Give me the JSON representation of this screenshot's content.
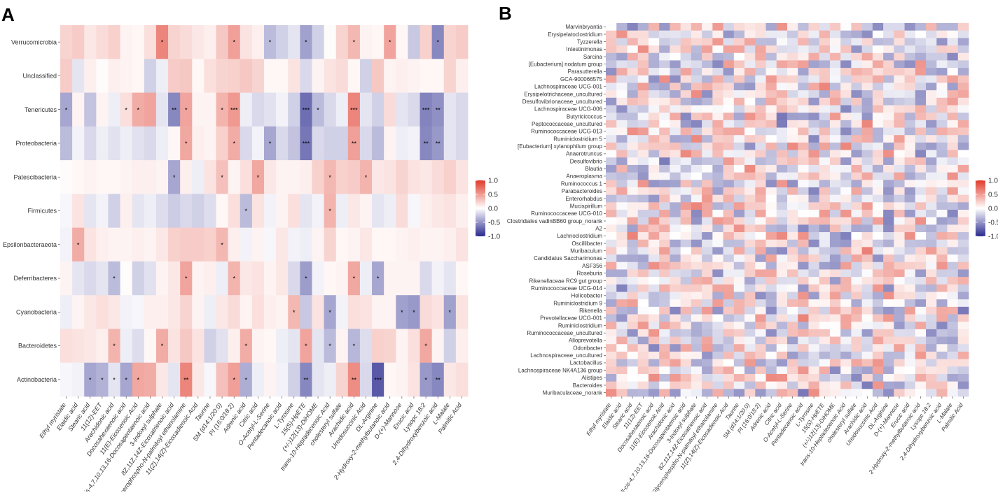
{
  "panels": [
    {
      "letter": "A"
    },
    {
      "letter": "B"
    }
  ],
  "colors": {
    "neg": "#2a2a8f",
    "mid": "#ffffff",
    "pos": "#e03a2a",
    "grid_bg": "#ebebeb",
    "tick": "#333333"
  },
  "chart_data": [
    {
      "type": "heatmap",
      "panel": "A",
      "title": "",
      "value_range": [
        -1,
        1
      ],
      "legend_ticks": [
        "1.0",
        "0.5",
        "0.0",
        "-0.5",
        "-1.0"
      ],
      "columns": [
        "Ethyl myristate",
        "Elaidic acid",
        "Stearic acid",
        "11(12)-EET",
        "Arachidonic acid",
        "Docosahexaenoic acid",
        "11(E)-Eicosenoic Acid",
        "all-cis-4,7,10,13,16-Docosapentaenoic acid",
        "3-Indoxyl sulphate",
        "8Z,11Z,14Z-Eicosatrienoic acid",
        "Glycerophospho-N-palmitoyl ethanolamine",
        "11(Z),14(Z)-Eicosadienoic Acid",
        "Taurine",
        "SM (d14:1/20:0)",
        "PI (16:0/18:2)",
        "Adrenic acid",
        "Citric acid",
        "O-Acetyl-L-Serine",
        "Pentadecanoic acid",
        "L-Tyrosine",
        "15(S)-HpETE",
        "(+/-)12(13)-DiHOME",
        "trans-10-Heptadecenoic Acid",
        "cholesteryl sulfate",
        "Arachidic acid",
        "Ureidosuccinic Acid",
        "DL-Arginine",
        "2-Hydroxy-2-methylbutanoic acid",
        "D-(+)-Mannose",
        "Erucic acid",
        "Lysopc 18:2",
        "2,4-Dihydroxybenzoic acid",
        "L-Malate",
        "Palmitic Acid"
      ],
      "rows": [
        "Verrucomicrobia",
        "Unclassified",
        "Tenericutes",
        "Proteobacteria",
        "Patescibacteria",
        "Firmicutes",
        "Epsilonbacteraeota",
        "Deferribacteres",
        "Cyanobacteria",
        "Bacteroidetes",
        "Actinobacteria"
      ],
      "values": [
        [
          0.22,
          0.26,
          0.12,
          0.18,
          0.24,
          0.06,
          0.04,
          0.16,
          0.62,
          0.22,
          0.18,
          0.12,
          0.08,
          0.28,
          0.48,
          0.14,
          0.08,
          -0.32,
          -0.22,
          -0.12,
          -0.44,
          -0.22,
          0.02,
          0.22,
          0.36,
          0.06,
          0.04,
          0.46,
          0.04,
          -0.26,
          0.24,
          -0.56,
          0.22,
          0.26
        ],
        [
          0.26,
          -0.12,
          0.08,
          0.02,
          0.08,
          0.06,
          0.04,
          -0.22,
          -0.08,
          0.26,
          0.28,
          0.04,
          0.16,
          0.22,
          0.24,
          0.28,
          0.22,
          0.04,
          0.04,
          0.14,
          -0.18,
          0.06,
          0.14,
          0.18,
          0.04,
          -0.22,
          0.28,
          0.06,
          0.08,
          0.06,
          0.04,
          0.04,
          0.22,
          0.08
        ],
        [
          -0.42,
          0.06,
          -0.28,
          0.06,
          -0.08,
          0.16,
          0.42,
          0.46,
          -0.12,
          -0.56,
          0.46,
          0.06,
          0.06,
          0.38,
          0.52,
          -0.08,
          -0.18,
          -0.14,
          -0.06,
          -0.22,
          -0.68,
          -0.32,
          -0.18,
          -0.08,
          0.62,
          -0.12,
          -0.22,
          0.18,
          -0.12,
          -0.18,
          -0.58,
          -0.52,
          -0.12,
          -0.18
        ],
        [
          -0.32,
          -0.06,
          -0.18,
          -0.08,
          -0.14,
          -0.08,
          -0.14,
          -0.18,
          -0.08,
          0.04,
          0.44,
          0.08,
          0.06,
          0.24,
          0.42,
          -0.18,
          -0.06,
          -0.42,
          -0.18,
          -0.28,
          -0.64,
          -0.18,
          -0.22,
          -0.22,
          0.48,
          -0.18,
          -0.32,
          0.06,
          -0.08,
          -0.06,
          -0.56,
          -0.48,
          -0.12,
          -0.18
        ],
        [
          0.02,
          0.04,
          0.06,
          0.04,
          0.04,
          0.06,
          0.08,
          0.08,
          0.06,
          -0.42,
          0.08,
          -0.08,
          0.14,
          0.32,
          0.06,
          0.16,
          0.44,
          0.12,
          0.06,
          0.06,
          0.08,
          0.24,
          0.36,
          0.24,
          0.26,
          0.38,
          0.12,
          0.14,
          0.22,
          0.14,
          0.12,
          0.18,
          0.24,
          0.14
        ],
        [
          -0.04,
          0.14,
          -0.12,
          -0.06,
          -0.22,
          0.08,
          -0.12,
          -0.08,
          -0.16,
          -0.24,
          -0.18,
          -0.22,
          -0.16,
          0.04,
          0.16,
          -0.32,
          0.14,
          -0.06,
          0.06,
          0.16,
          -0.12,
          -0.06,
          0.38,
          -0.08,
          0.12,
          0.06,
          -0.12,
          -0.08,
          0.18,
          -0.04,
          0.08,
          0.12,
          0.14,
          0.08
        ],
        [
          -0.06,
          0.42,
          0.14,
          0.08,
          0.06,
          0.06,
          0.08,
          0.06,
          0.12,
          0.24,
          0.26,
          0.26,
          0.24,
          0.36,
          0.08,
          -0.06,
          0.06,
          -0.04,
          0.12,
          -0.06,
          -0.08,
          0.06,
          0.22,
          0.04,
          0.06,
          0.12,
          0.04,
          0.04,
          0.06,
          0.08,
          0.06,
          0.06,
          0.08,
          0.14
        ],
        [
          0.06,
          -0.12,
          -0.18,
          -0.12,
          -0.32,
          0.02,
          -0.22,
          -0.14,
          0.06,
          0.12,
          0.46,
          0.06,
          0.08,
          -0.08,
          0.38,
          0.12,
          0.14,
          0.06,
          0.12,
          -0.18,
          -0.46,
          -0.06,
          0.04,
          0.06,
          0.44,
          -0.08,
          -0.42,
          0.06,
          0.06,
          0.06,
          -0.18,
          -0.06,
          -0.12,
          0.04
        ],
        [
          -0.08,
          0.06,
          0.12,
          0.16,
          0.12,
          -0.06,
          -0.04,
          0.08,
          0.08,
          0.12,
          0.22,
          0.06,
          -0.08,
          0.12,
          0.18,
          0.06,
          0.16,
          0.08,
          0.06,
          0.36,
          -0.26,
          0.14,
          -0.42,
          -0.06,
          0.16,
          0.14,
          0.06,
          0.06,
          -0.44,
          -0.48,
          0.18,
          0.14,
          -0.44,
          0.14
        ],
        [
          0.16,
          0.14,
          0.12,
          0.08,
          0.38,
          -0.08,
          -0.16,
          0.04,
          0.42,
          0.14,
          0.28,
          0.14,
          -0.22,
          -0.14,
          0.08,
          0.42,
          0.06,
          0.04,
          -0.08,
          -0.12,
          0.46,
          -0.12,
          -0.32,
          0.06,
          -0.34,
          -0.16,
          0.24,
          0.22,
          0.06,
          0.16,
          0.44,
          0.06,
          -0.22,
          0.08
        ],
        [
          -0.04,
          -0.06,
          -0.42,
          -0.36,
          -0.12,
          -0.42,
          0.44,
          0.42,
          0.12,
          -0.12,
          0.62,
          0.12,
          -0.04,
          0.32,
          0.48,
          -0.38,
          -0.08,
          0.06,
          -0.06,
          -0.22,
          -0.56,
          -0.12,
          -0.08,
          0.22,
          0.58,
          -0.18,
          -0.78,
          0.04,
          0.06,
          0.14,
          -0.48,
          -0.56,
          0.12,
          0.16
        ]
      ],
      "stars": [
        [
          "",
          "",
          "",
          "",
          "",
          "",
          "",
          "",
          "*",
          "",
          "",
          "",
          "",
          "",
          "*",
          "",
          "",
          "*",
          "",
          "",
          "*",
          "",
          "",
          "",
          "*",
          "",
          "",
          "*",
          "",
          "",
          "",
          "*",
          "",
          ""
        ],
        [
          "",
          "",
          "",
          "",
          "",
          "",
          "",
          "",
          "",
          "",
          "",
          "",
          "",
          "",
          "",
          "",
          "",
          "",
          "",
          "",
          "",
          "",
          "",
          "",
          "",
          "",
          "",
          "",
          "",
          "",
          "",
          "",
          "",
          ""
        ],
        [
          "*",
          "",
          "",
          "",
          "",
          "*",
          "*",
          "",
          "",
          "**",
          "*",
          "",
          "",
          "*",
          "***",
          "",
          "",
          "",
          "",
          "",
          "***",
          "*",
          "",
          "",
          "***",
          "",
          "",
          "",
          "",
          "",
          "***",
          "**",
          "",
          ""
        ],
        [
          "",
          "",
          "",
          "",
          "",
          "",
          "",
          "",
          "",
          "",
          "*",
          "",
          "",
          "",
          "*",
          "",
          "",
          "*",
          "",
          "",
          "***",
          "",
          "",
          "",
          "**",
          "",
          "",
          "",
          "",
          "",
          "**",
          "**",
          "",
          ""
        ],
        [
          "",
          "",
          "",
          "",
          "",
          "",
          "",
          "",
          "",
          "*",
          "",
          "",
          "",
          "*",
          "",
          "",
          "*",
          "",
          "",
          "",
          "",
          "",
          "*",
          "",
          "",
          "*",
          "",
          "",
          "",
          "",
          "",
          "",
          "",
          ""
        ],
        [
          "",
          "",
          "",
          "",
          "",
          "",
          "",
          "",
          "",
          "",
          "",
          "",
          "",
          "",
          "",
          "*",
          "",
          "",
          "",
          "",
          "",
          "",
          "*",
          "",
          "",
          "",
          "",
          "",
          "",
          "",
          "",
          "",
          "",
          ""
        ],
        [
          "",
          "*",
          "",
          "",
          "",
          "",
          "",
          "",
          "",
          "",
          "",
          "",
          "",
          "*",
          "",
          "",
          "",
          "",
          "",
          "",
          "",
          "",
          "",
          "",
          "",
          "",
          "",
          "",
          "",
          "",
          "",
          "",
          "",
          ""
        ],
        [
          "",
          "",
          "",
          "",
          "*",
          "",
          "",
          "",
          "",
          "",
          "*",
          "",
          "",
          "",
          "*",
          "",
          "",
          "",
          "",
          "",
          "*",
          "",
          "",
          "",
          "*",
          "",
          "*",
          "",
          "",
          "",
          "",
          "",
          "",
          ""
        ],
        [
          "",
          "",
          "",
          "",
          "",
          "",
          "",
          "",
          "",
          "",
          "",
          "",
          "",
          "",
          "",
          "",
          "",
          "",
          "",
          "*",
          "",
          "",
          "*",
          "",
          "",
          "",
          "",
          "",
          "*",
          "*",
          "",
          "",
          "*",
          ""
        ],
        [
          "",
          "",
          "",
          "",
          "*",
          "",
          "",
          "",
          "*",
          "",
          "",
          "",
          "",
          "",
          "",
          "*",
          "",
          "",
          "",
          "",
          "*",
          "",
          "*",
          "",
          "*",
          "",
          "",
          "",
          "",
          "",
          "*",
          "",
          "",
          ""
        ],
        [
          "",
          "",
          "*",
          "*",
          "*",
          "*",
          "*",
          "",
          "",
          "",
          "**",
          "",
          "",
          "",
          "*",
          "*",
          "",
          "",
          "",
          "",
          "**",
          "",
          "",
          "",
          "**",
          "",
          "***",
          "",
          "",
          "",
          "*",
          "**",
          "",
          ""
        ]
      ]
    },
    {
      "type": "heatmap",
      "panel": "B",
      "title": "",
      "value_range": [
        -1,
        1
      ],
      "legend_ticks": [
        "1.0",
        "0.5",
        "0.0",
        "-0.5",
        "-1.0"
      ],
      "columns": [
        "Ethyl myristate",
        "Elaidic acid",
        "Stearic acid",
        "11(12)-EET",
        "Docosahexaenoic acid",
        "11(E)-Eicosenoic Acid",
        "Arachidonic acid",
        "all-cis-4,7,10,13,16-Docosapentaenoic acid",
        "3-Indoxyl sulphate",
        "8Z,11Z,14Z-Eicosatrienoic acid",
        "Glycerophospho-N-palmitoyl ethanolamine",
        "11(Z),14(Z)-Eicosadienoic Acid",
        "Taurine",
        "SM (d14:1/20:0)",
        "PI (16:0/18:2)",
        "Adrenic acid",
        "Citric acid",
        "O-Acetyl-L-Serine",
        "Pentadecanoic acid",
        "L-Tyrosine",
        "15(S)-HpETE",
        "(+/-)12(13)-DiHOME",
        "trans-10-Heptadecenoic Acid",
        "cholesteryl sulfate",
        "Arachidic acid",
        "Ureidosuccinic Acid",
        "DL-Arginine",
        "D-(+)-Mannose",
        "Erucic acid",
        "2-Hydroxy-2-methylbutanoic acid",
        "Lysopc 18:2",
        "2,4-Dihydroxybenzoic acid",
        "L-Malate",
        "Palmitic Acid"
      ],
      "rows": [
        "Marvinbryantia",
        "Erysipelatoclostridium",
        "Tyzzerella",
        "Intestinimonas",
        "Sarcina",
        "[Eubacterium] nodatum group",
        "Parasutterella",
        "GCA-900066575",
        "Lachnospiraceae UCG-001",
        "Erysipelotrichaceae_uncultured",
        "Desulfovibrionaceae_uncultured",
        "Lachnospiraceae UCG-006",
        "Butyricicoccus",
        "Peptococcaceae_uncultured",
        "Ruminococcaceae UCG-013",
        "Ruminiclostridium 5",
        "[Eubacterium] xylanophilum group",
        "Anaerotruncus",
        "Desulfovibrio",
        "Blautia",
        "Anaeroplasma",
        "Ruminococcus 1",
        "Parabacteroides",
        "Enterorhabdus",
        "Mucispirillum",
        "Ruminococcaceae UCG-010",
        "Clostridiales vadinBB60 group_norank",
        "A2",
        "Lachnoclostridium",
        "Oscillibacter",
        "Muribaculum",
        "Candidatus Saccharimonas",
        "ASF356",
        "Roseburia",
        "Rikenellaceae RC9 gut group",
        "Ruminococcaceae UCG-014",
        "Helicobacter",
        "Ruminiclostridium 9",
        "Rikenella",
        "Prevotellaceae UCG-001",
        "Ruminiclostridium",
        "Ruminococcaceae_uncultured",
        "Alloprevotella",
        "Odoribacter",
        "Lachnospiraceae_uncultured",
        "Lactobacillus",
        "Lachnospiraceae NK4A136 group",
        "Alistipes",
        "Bacteroides",
        "Muribaculaceae_norank"
      ]
    }
  ]
}
